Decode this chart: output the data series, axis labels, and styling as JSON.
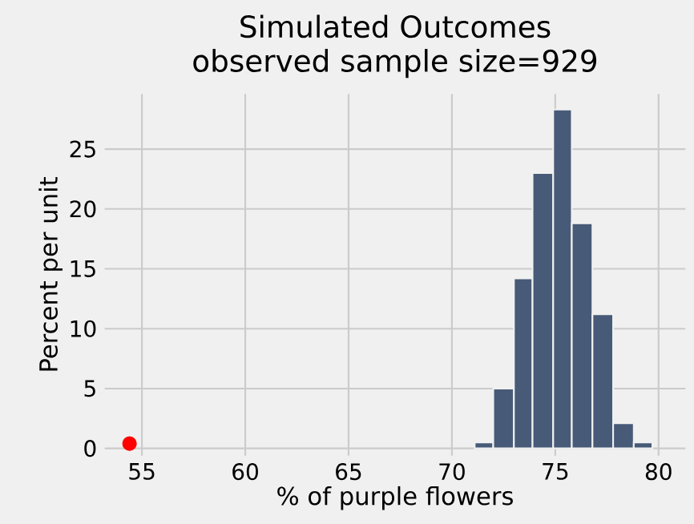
{
  "chart_data": {
    "type": "histogram",
    "title": "Simulated Outcomes",
    "subtitle": "observed sample size=929",
    "xlabel": "% of purple flowers",
    "ylabel": "Percent per unit",
    "bins": [
      71.1,
      72.0,
      73.0,
      73.9,
      74.9,
      75.8,
      76.8,
      77.8,
      78.8,
      79.7
    ],
    "values": [
      0.5,
      5.0,
      14.2,
      23.0,
      28.3,
      18.8,
      11.2,
      2.1,
      0.5
    ],
    "color": "#475a77",
    "series": [
      {
        "type": "scatter",
        "x": [
          54.4
        ],
        "values": [
          0.4
        ],
        "color": "#ff0000",
        "marker": "circle"
      }
    ],
    "xlim": [
      53.2,
      81.3
    ],
    "ylim": [
      -0.6,
      29.6
    ],
    "xticks": [
      55,
      60,
      65,
      70,
      75,
      80
    ],
    "yticks": [
      0,
      5,
      10,
      15,
      20,
      25
    ],
    "grid": true
  }
}
